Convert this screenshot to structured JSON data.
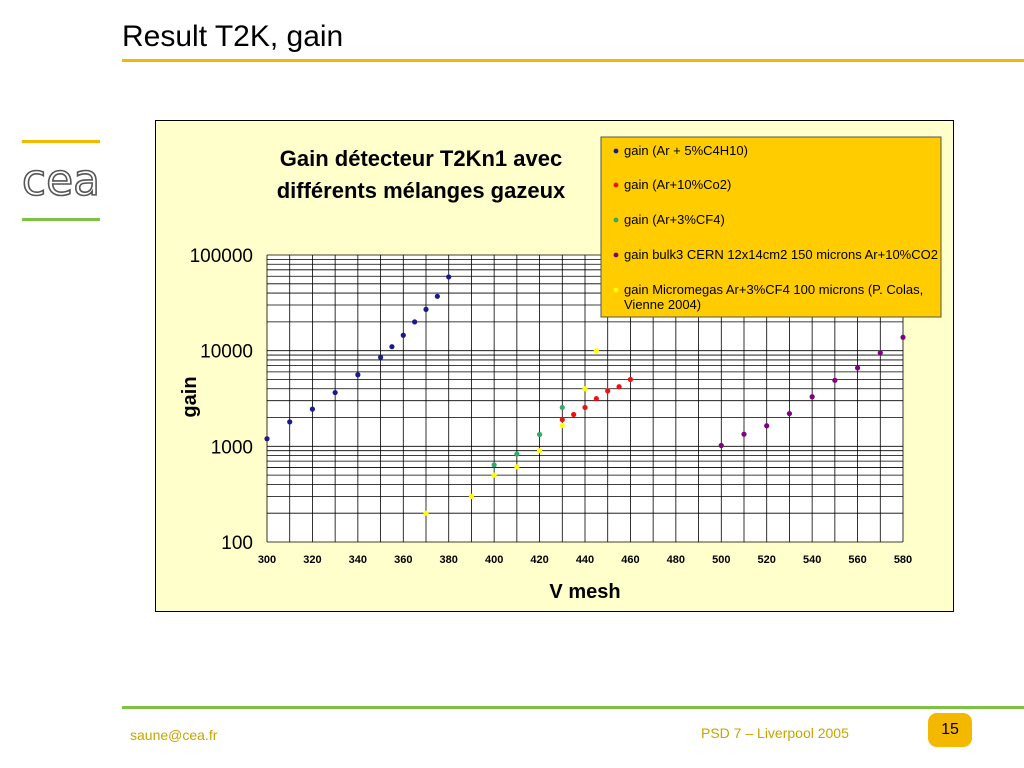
{
  "slide": {
    "title": "Result T2K, gain"
  },
  "logo": {
    "text": "cea"
  },
  "footer": {
    "email": "saune@cea.fr",
    "conference": "PSD 7 – Liverpool 2005",
    "page_number": "15"
  },
  "colors": {
    "accent_orange": "#f5b800",
    "accent_green": "#7dc242",
    "plot_bg": "#ffffcc",
    "legend_bg": "#ffcc00",
    "footer_text": "#c8a400"
  },
  "chart_data": {
    "type": "scatter",
    "title_lines": [
      "Gain détecteur T2Kn1 avec",
      "différents mélanges gazeux"
    ],
    "xlabel": "V mesh",
    "ylabel": "gain",
    "xlim": [
      300,
      580
    ],
    "ylim": [
      100,
      100000
    ],
    "y_scale": "log",
    "grid": true,
    "legend_position": "top-right",
    "x_ticks": [
      "300",
      "320",
      "340",
      "360",
      "380",
      "400",
      "420",
      "440",
      "460",
      "480",
      "500",
      "520",
      "540",
      "560",
      "580"
    ],
    "y_ticks": [
      "100000",
      "10000",
      "1000",
      "100"
    ],
    "series": [
      {
        "name": "gain (Ar + 5%C4H10)",
        "color": "#1a1a8c",
        "x": [
          300,
          310,
          320,
          330,
          340,
          350,
          355,
          360,
          365,
          370,
          375,
          380
        ],
        "y": [
          1200,
          1800,
          2450,
          3650,
          5600,
          8500,
          11000,
          14500,
          20000,
          27000,
          37000,
          59000
        ]
      },
      {
        "name": "gain (Ar+10%Co2)",
        "color": "#ee1111",
        "x": [
          430,
          435,
          440,
          445,
          450,
          455,
          460
        ],
        "y": [
          1900,
          2150,
          2550,
          3150,
          3800,
          4200,
          5000
        ]
      },
      {
        "name": "gain (Ar+3%CF4)",
        "color": "#33aa66",
        "x": [
          400,
          410,
          420,
          430
        ],
        "y": [
          640,
          830,
          1330,
          2550
        ]
      },
      {
        "name": "gain bulk3 CERN 12x14cm2 150 microns Ar+10%CO2",
        "color": "#800080",
        "x": [
          500,
          510,
          520,
          530,
          540,
          550,
          560,
          570,
          580
        ],
        "y": [
          1020,
          1340,
          1640,
          2200,
          3300,
          4900,
          6600,
          9500,
          13800
        ]
      },
      {
        "name": "gain Micromegas Ar+3%CF4  100 microns (P. Colas, Vienne 2004)",
        "color": "#ffff00",
        "x": [
          370,
          390,
          400,
          410,
          420,
          430,
          440,
          445
        ],
        "y": [
          200,
          300,
          500,
          610,
          900,
          1650,
          4000,
          10000
        ]
      }
    ]
  }
}
